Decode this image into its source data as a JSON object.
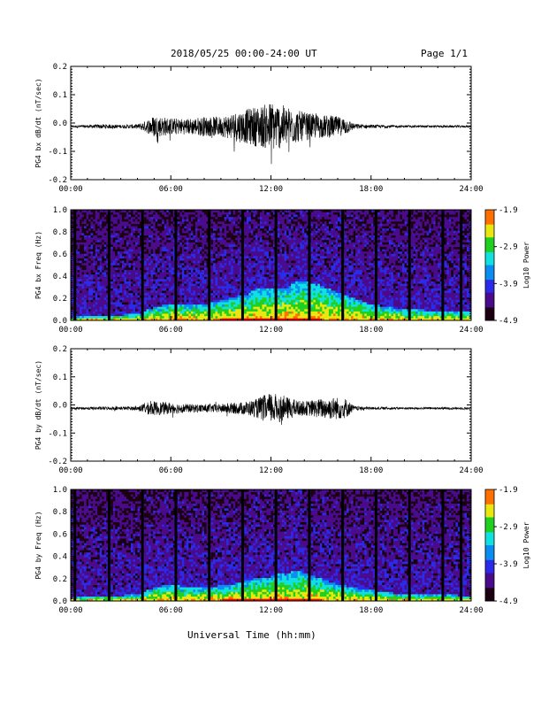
{
  "header": {
    "title": "2018/05/25  00:00-24:00 UT",
    "page": "Page 1/1"
  },
  "colors": {
    "trace": "#000000",
    "spectro_ramp": [
      "#1a0010",
      "#4a0a8c",
      "#2a2ae8",
      "#0a8cf0",
      "#10e0e0",
      "#20d020",
      "#e8e810",
      "#ff7000",
      "#ff0000"
    ]
  },
  "chart_data": [
    {
      "type": "line",
      "panel": "pg4-bx-dbdt",
      "ylabel": "PG4 bx dB/dt (nT/sec)",
      "ylim": [
        -0.2,
        0.2
      ],
      "yticks": [
        "0.2",
        "0.1",
        "0.0",
        "-0.1",
        "-0.2"
      ],
      "xticks": [
        "00:00",
        "06:00",
        "12:00",
        "18:00",
        "24:00"
      ],
      "x_hours": [
        0,
        1,
        2,
        3,
        4,
        4.5,
        5,
        6,
        7,
        8,
        9,
        9.5,
        10,
        10.5,
        11,
        11.5,
        12,
        12.5,
        13,
        13.5,
        14,
        14.5,
        15,
        15.5,
        16,
        16.5,
        17,
        18,
        19,
        20,
        21,
        22,
        23,
        24
      ],
      "amplitude": [
        0.004,
        0.005,
        0.008,
        0.006,
        0.008,
        0.02,
        0.04,
        0.03,
        0.028,
        0.035,
        0.035,
        0.045,
        0.055,
        0.06,
        0.07,
        0.075,
        0.09,
        0.08,
        0.07,
        0.06,
        0.05,
        0.045,
        0.04,
        0.04,
        0.035,
        0.03,
        0.01,
        0.006,
        0.005,
        0.004,
        0.004,
        0.004,
        0.004,
        0.004
      ]
    },
    {
      "type": "heatmap",
      "panel": "pg4-bx-spectrogram",
      "ylabel": "PG4 bx Freq (Hz)",
      "ylim": [
        0.0,
        1.0
      ],
      "yticks": [
        "1.0",
        "0.8",
        "0.6",
        "0.4",
        "0.2",
        "0.0"
      ],
      "xticks": [
        "00:00",
        "06:00",
        "12:00",
        "18:00",
        "24:00"
      ],
      "colorbar": {
        "label": "Log10 Power",
        "min": -4.9,
        "max": -1.9,
        "ticks": [
          "-1.9",
          "-2.9",
          "-3.9",
          "-4.9"
        ]
      },
      "data_gaps_hours": [
        0.25,
        2.3,
        4.3,
        6.3,
        8.3,
        10.3,
        12.3,
        14.3,
        16.3,
        18.3,
        20.3,
        22.3,
        23.4
      ],
      "band_top_hz": [
        0.03,
        0.04,
        0.05,
        0.05,
        0.06,
        0.12,
        0.15,
        0.15,
        0.15,
        0.18,
        0.2,
        0.22,
        0.22,
        0.28,
        0.3,
        0.3,
        0.3,
        0.35,
        0.35,
        0.32,
        0.25,
        0.2,
        0.15,
        0.12,
        0.1,
        0.08
      ],
      "band_hours": [
        0,
        1,
        2,
        3,
        4,
        5,
        6,
        7,
        8,
        9,
        9.5,
        10,
        10.5,
        11,
        12,
        12.5,
        13,
        13.5,
        14,
        15,
        16,
        17,
        18,
        19,
        20,
        24
      ]
    },
    {
      "type": "line",
      "panel": "pg4-by-dbdt",
      "ylabel": "PG4 by dB/dt (nT/sec)",
      "ylim": [
        -0.2,
        0.2
      ],
      "yticks": [
        "0.2",
        "0.1",
        "0.0",
        "-0.1",
        "-0.2"
      ],
      "xticks": [
        "00:00",
        "06:00",
        "12:00",
        "18:00",
        "24:00"
      ],
      "x_hours": [
        0,
        1,
        2,
        3,
        4,
        4.5,
        5,
        6,
        7,
        8,
        9,
        9.5,
        10,
        10.5,
        11,
        11.5,
        12,
        12.5,
        13,
        13.5,
        14,
        14.5,
        15,
        15.5,
        16,
        16.5,
        17,
        18,
        19,
        20,
        21,
        22,
        23,
        24
      ],
      "amplitude": [
        0.004,
        0.005,
        0.006,
        0.006,
        0.007,
        0.02,
        0.025,
        0.02,
        0.015,
        0.015,
        0.015,
        0.02,
        0.02,
        0.025,
        0.03,
        0.045,
        0.055,
        0.05,
        0.04,
        0.03,
        0.025,
        0.03,
        0.035,
        0.04,
        0.04,
        0.035,
        0.008,
        0.005,
        0.004,
        0.004,
        0.004,
        0.004,
        0.004,
        0.004
      ]
    },
    {
      "type": "heatmap",
      "panel": "pg4-by-spectrogram",
      "ylabel": "PG4 by Freq (Hz)",
      "ylim": [
        0.0,
        1.0
      ],
      "yticks": [
        "1.0",
        "0.8",
        "0.6",
        "0.4",
        "0.2",
        "0.0"
      ],
      "xticks": [
        "00:00",
        "06:00",
        "12:00",
        "18:00",
        "24:00"
      ],
      "colorbar": {
        "label": "Log10 Power",
        "min": -4.9,
        "max": -1.9,
        "ticks": [
          "-1.9",
          "-2.9",
          "-3.9",
          "-4.9"
        ]
      },
      "data_gaps_hours": [
        0.25,
        2.3,
        4.3,
        6.3,
        8.3,
        10.3,
        12.3,
        14.3,
        16.3,
        18.3,
        20.3,
        22.3,
        23.4
      ],
      "band_top_hz": [
        0.03,
        0.04,
        0.05,
        0.05,
        0.06,
        0.12,
        0.15,
        0.12,
        0.12,
        0.14,
        0.15,
        0.16,
        0.18,
        0.2,
        0.22,
        0.25,
        0.25,
        0.28,
        0.25,
        0.2,
        0.15,
        0.12,
        0.1,
        0.08,
        0.06,
        0.05
      ],
      "band_hours": [
        0,
        1,
        2,
        3,
        4,
        5,
        6,
        7,
        8,
        9,
        9.5,
        10,
        10.5,
        11,
        12,
        12.5,
        13,
        13.5,
        14,
        15,
        16,
        17,
        18,
        19,
        20,
        24
      ]
    }
  ],
  "xaxis_label": "Universal Time (hh:mm)"
}
